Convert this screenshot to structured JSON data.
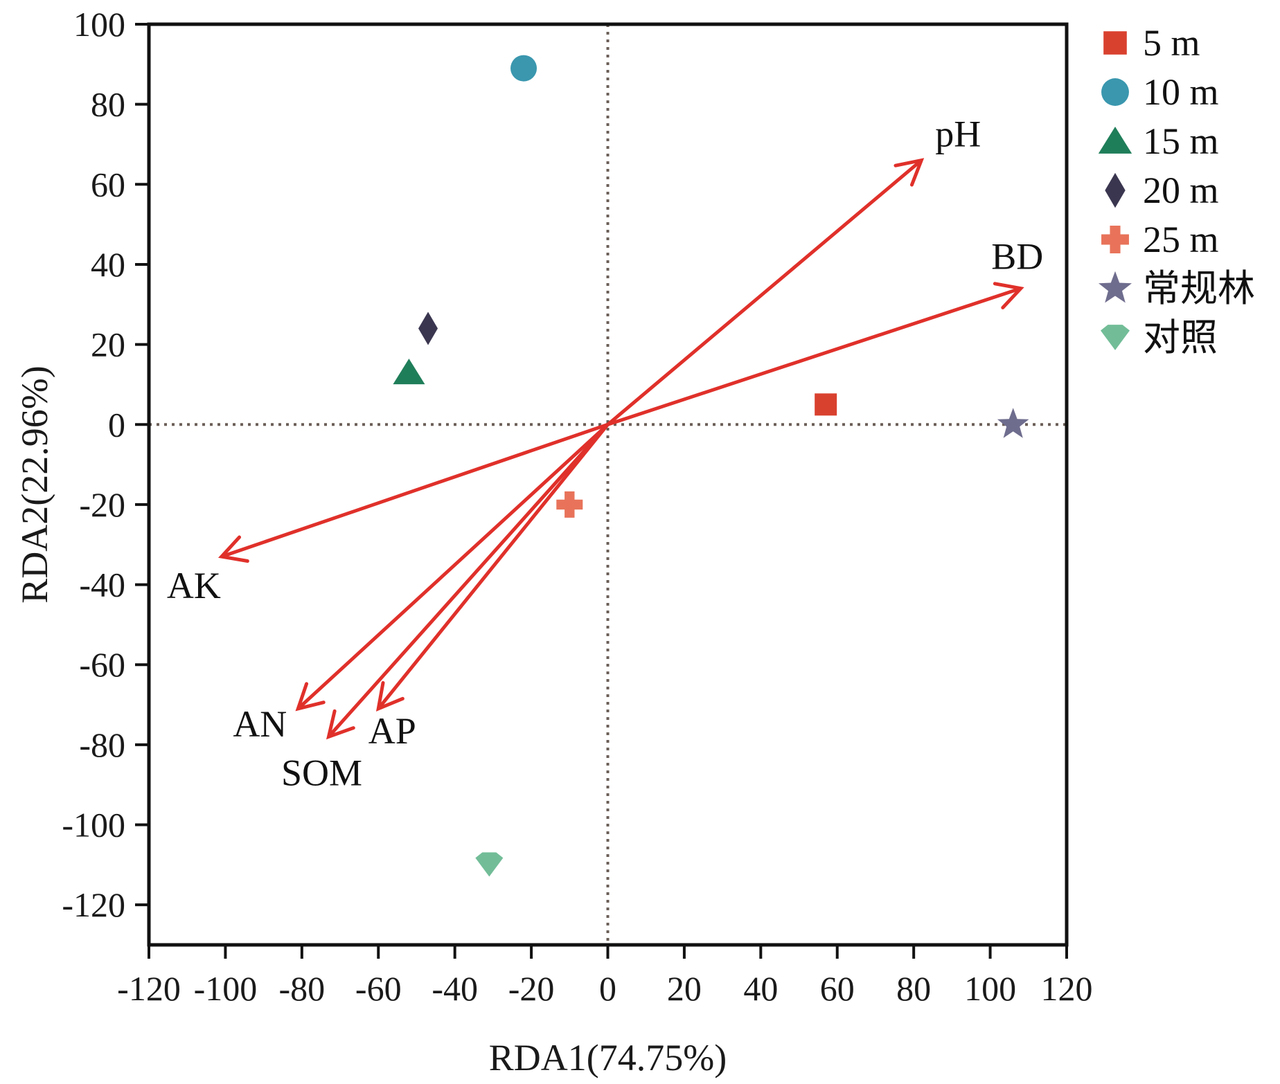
{
  "chart_data": {
    "type": "scatter",
    "subtype": "rda-biplot",
    "title": "",
    "xlabel": "RDA1(74.75%)",
    "ylabel": "RDA2(22.96%)",
    "xlim": [
      -120,
      120
    ],
    "ylim": [
      -130,
      100
    ],
    "xticks": [
      -120,
      -100,
      -80,
      -60,
      -40,
      -20,
      0,
      20,
      40,
      60,
      80,
      100,
      120
    ],
    "yticks": [
      100,
      80,
      60,
      40,
      20,
      0,
      -20,
      -40,
      -60,
      -80,
      -100,
      -120
    ],
    "grid": false,
    "zero_lines": "dotted",
    "legend_position": "right",
    "series": [
      {
        "name": "5 m",
        "marker": "square",
        "color": "#d9412f",
        "x": 57,
        "y": 5
      },
      {
        "name": "10 m",
        "marker": "circle",
        "color": "#3a97ae",
        "x": -22,
        "y": 89
      },
      {
        "name": "15 m",
        "marker": "triangle",
        "color": "#1f7e5a",
        "x": -52,
        "y": 13
      },
      {
        "name": "20 m",
        "marker": "diamond",
        "color": "#3b3650",
        "x": -47,
        "y": 24
      },
      {
        "name": "25 m",
        "marker": "cross",
        "color": "#e8735a",
        "x": -10,
        "y": -20
      },
      {
        "name": "常规林",
        "marker": "star",
        "color": "#6f6d8e",
        "x": 106,
        "y": 0
      },
      {
        "name": "对照",
        "marker": "pentagon",
        "color": "#72bd98",
        "x": -31,
        "y": -110
      }
    ],
    "arrows": [
      {
        "label": "pH",
        "x": 82,
        "y": 66,
        "color": "#e0302a"
      },
      {
        "label": "BD",
        "x": 108,
        "y": 34,
        "color": "#e0302a"
      },
      {
        "label": "AK",
        "x": -101,
        "y": -33,
        "color": "#e0302a"
      },
      {
        "label": "AN",
        "x": -81,
        "y": -71,
        "color": "#e0302a"
      },
      {
        "label": "SOM",
        "x": -73,
        "y": -78,
        "color": "#e0302a"
      },
      {
        "label": "AP",
        "x": -60,
        "y": -71,
        "color": "#e0302a"
      }
    ]
  }
}
